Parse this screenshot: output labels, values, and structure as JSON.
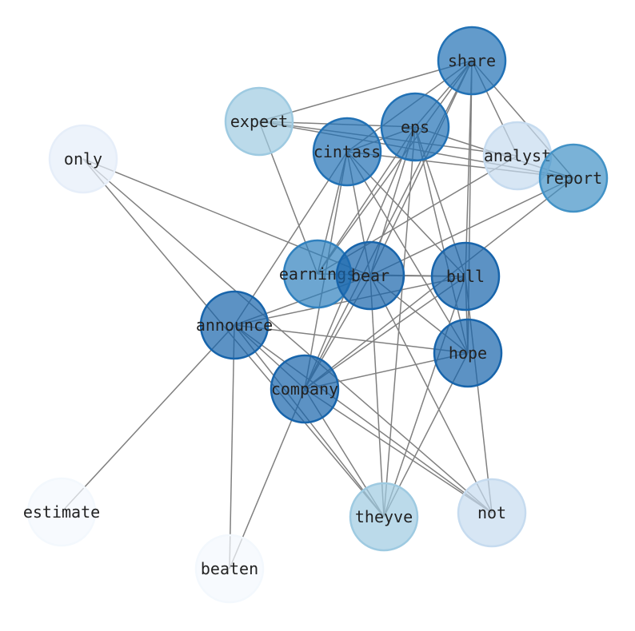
{
  "diagram": {
    "type": "network-graph",
    "edge_color": "#808080",
    "colormap": "Blues",
    "nodes": [
      {
        "id": "share",
        "label": "share",
        "color": "#2171b5"
      },
      {
        "id": "expect",
        "label": "expect",
        "color": "#9ecae1"
      },
      {
        "id": "eps",
        "label": "eps",
        "color": "#2171b5"
      },
      {
        "id": "only",
        "label": "only",
        "color": "#e6eef9"
      },
      {
        "id": "cintass",
        "label": "cintass",
        "color": "#2171b5"
      },
      {
        "id": "analyst",
        "label": "analyst",
        "color": "#c6dbef"
      },
      {
        "id": "report",
        "label": "report",
        "color": "#4292c6"
      },
      {
        "id": "earnings",
        "label": "earnings",
        "color": "#2f80be"
      },
      {
        "id": "bear",
        "label": "bear",
        "color": "#1764ab"
      },
      {
        "id": "bull",
        "label": "bull",
        "color": "#1764ab"
      },
      {
        "id": "announce",
        "label": "announce",
        "color": "#1764ab"
      },
      {
        "id": "hope",
        "label": "hope",
        "color": "#1764ab"
      },
      {
        "id": "company",
        "label": "company",
        "color": "#1764ab"
      },
      {
        "id": "estimate",
        "label": "estimate",
        "color": "#f3f8fd"
      },
      {
        "id": "theyve",
        "label": "theyve",
        "color": "#9ecae1"
      },
      {
        "id": "not",
        "label": "not",
        "color": "#c6dbef"
      },
      {
        "id": "beaten",
        "label": "beaten",
        "color": "#f3f8fd"
      }
    ],
    "edges": [
      [
        "share",
        "expect"
      ],
      [
        "share",
        "cintass"
      ],
      [
        "share",
        "eps"
      ],
      [
        "share",
        "analyst"
      ],
      [
        "share",
        "report"
      ],
      [
        "share",
        "bull"
      ],
      [
        "share",
        "hope"
      ],
      [
        "share",
        "earnings"
      ],
      [
        "share",
        "bear"
      ],
      [
        "share",
        "company"
      ],
      [
        "expect",
        "eps"
      ],
      [
        "expect",
        "analyst"
      ],
      [
        "expect",
        "report"
      ],
      [
        "expect",
        "earnings"
      ],
      [
        "eps",
        "report"
      ],
      [
        "eps",
        "cintass"
      ],
      [
        "eps",
        "earnings"
      ],
      [
        "eps",
        "bear"
      ],
      [
        "eps",
        "bull"
      ],
      [
        "eps",
        "hope"
      ],
      [
        "eps",
        "company"
      ],
      [
        "eps",
        "theyve"
      ],
      [
        "cintass",
        "report"
      ],
      [
        "cintass",
        "earnings"
      ],
      [
        "cintass",
        "bear"
      ],
      [
        "cintass",
        "bull"
      ],
      [
        "cintass",
        "hope"
      ],
      [
        "cintass",
        "announce"
      ],
      [
        "cintass",
        "company"
      ],
      [
        "only",
        "bear"
      ],
      [
        "only",
        "not"
      ],
      [
        "only",
        "theyve"
      ],
      [
        "analyst",
        "earnings"
      ],
      [
        "report",
        "bear"
      ],
      [
        "report",
        "company"
      ],
      [
        "bear",
        "bull"
      ],
      [
        "bear",
        "hope"
      ],
      [
        "bear",
        "announce"
      ],
      [
        "bear",
        "company"
      ],
      [
        "bear",
        "theyve"
      ],
      [
        "bear",
        "not"
      ],
      [
        "bull",
        "announce"
      ],
      [
        "bull",
        "company"
      ],
      [
        "bull",
        "hope"
      ],
      [
        "bull",
        "theyve"
      ],
      [
        "bull",
        "not"
      ],
      [
        "announce",
        "hope"
      ],
      [
        "announce",
        "estimate"
      ],
      [
        "announce",
        "beaten"
      ],
      [
        "announce",
        "company"
      ],
      [
        "announce",
        "theyve"
      ],
      [
        "announce",
        "not"
      ],
      [
        "company",
        "hope"
      ],
      [
        "company",
        "beaten"
      ],
      [
        "company",
        "theyve"
      ],
      [
        "company",
        "not"
      ],
      [
        "hope",
        "theyve"
      ],
      [
        "earnings",
        "bull"
      ]
    ]
  }
}
